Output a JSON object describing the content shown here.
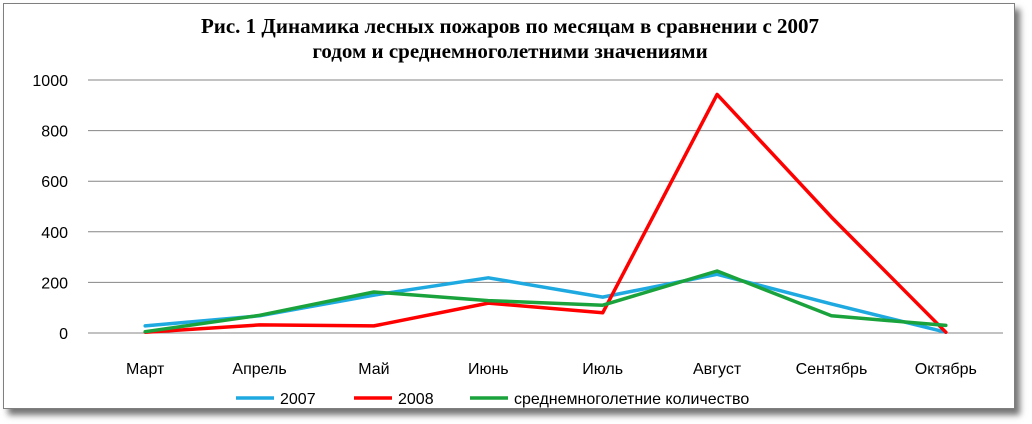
{
  "chart_data": {
    "type": "line",
    "title_lines": [
      "Рис. 1  Динамика лесных пожаров по месяцам в сравнении с 2007",
      "годом и среднемноголетними значениями"
    ],
    "xlabel": "",
    "ylabel": "",
    "categories": [
      "Март",
      "Апрель",
      "Май",
      "Июнь",
      "Июль",
      "Август",
      "Сентябрь",
      "Октябрь"
    ],
    "ylim": [
      0,
      1000
    ],
    "yticks": [
      0,
      200,
      400,
      600,
      800,
      1000
    ],
    "grid": true,
    "legend_position": "bottom",
    "series": [
      {
        "name": "2007",
        "color": "#1fa9e1",
        "values": [
          28,
          68,
          150,
          218,
          142,
          232,
          115,
          3
        ]
      },
      {
        "name": "2008",
        "color": "#ff0000",
        "values": [
          3,
          32,
          28,
          118,
          80,
          943,
          458,
          3
        ]
      },
      {
        "name": "среднемноголетние количество",
        "color": "#1aa33c",
        "values": [
          5,
          70,
          162,
          128,
          110,
          245,
          68,
          30
        ]
      }
    ]
  }
}
